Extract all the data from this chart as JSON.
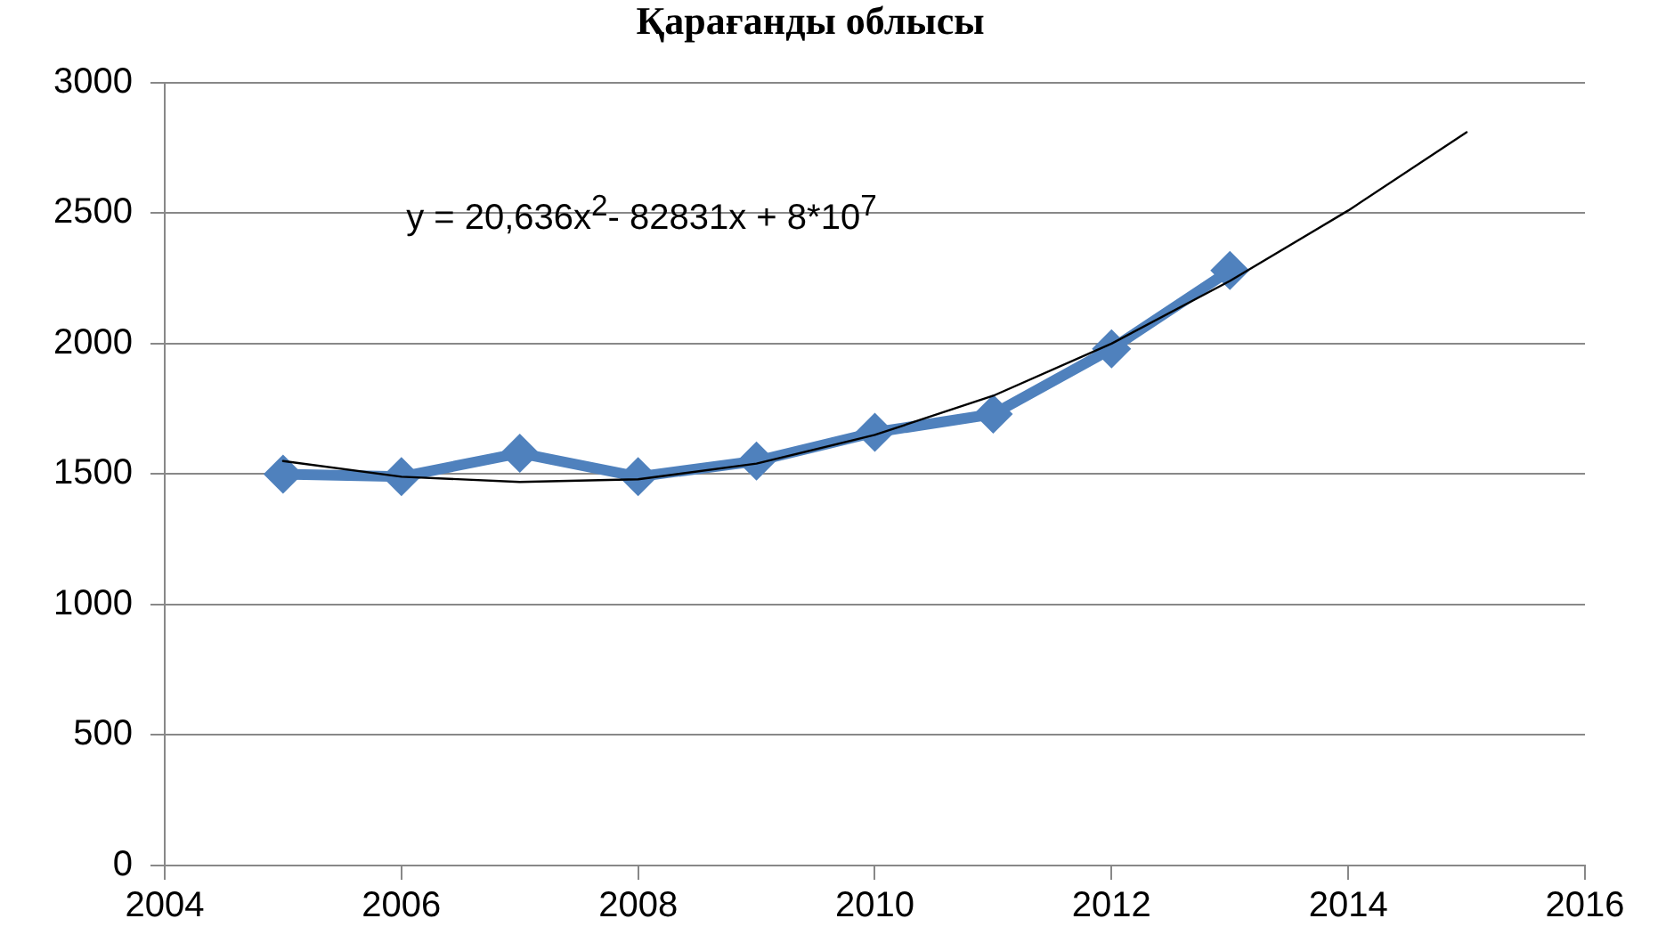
{
  "chart_data": {
    "type": "line",
    "title": "Қарағанды облысы",
    "xlim": [
      2004,
      2016
    ],
    "xticks": [
      2004,
      2006,
      2008,
      2010,
      2012,
      2014,
      2016
    ],
    "ylim": [
      0,
      3000
    ],
    "yticks": [
      0,
      500,
      1000,
      1500,
      2000,
      2500,
      3000
    ],
    "grid": "y",
    "legend": false,
    "marker": "diamond",
    "line_style": "solid",
    "annotations": [
      "y = 20,636x$^{2}$- 82831x + 8*10$^{7}$"
    ],
    "series": [
      {
        "color": "#4f81bd",
        "x": [
          2005,
          2006,
          2007,
          2008,
          2009,
          2010,
          2011,
          2012,
          2013
        ],
        "values": [
          1500,
          1490,
          1580,
          1490,
          1550,
          1660,
          1730,
          1980,
          2280
        ]
      },
      {
        "type": "line",
        "marker": "none",
        "color": "#000000",
        "x": [
          2005,
          2006,
          2007,
          2008,
          2009,
          2010,
          2011,
          2012,
          2013,
          2014,
          2015
        ],
        "values": [
          1550,
          1490,
          1470,
          1480,
          1540,
          1650,
          1800,
          2000,
          2240,
          2510,
          2810
        ]
      }
    ]
  }
}
